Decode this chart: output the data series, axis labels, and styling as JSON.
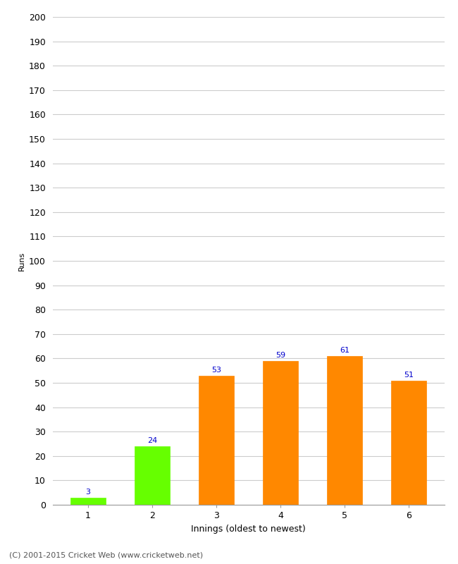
{
  "categories": [
    "1",
    "2",
    "3",
    "4",
    "5",
    "6"
  ],
  "values": [
    3,
    24,
    53,
    59,
    61,
    51
  ],
  "bar_colors": [
    "#66ff00",
    "#66ff00",
    "#ff8800",
    "#ff8800",
    "#ff8800",
    "#ff8800"
  ],
  "xlabel": "Innings (oldest to newest)",
  "ylabel": "Runs",
  "ylim": [
    0,
    200
  ],
  "yticks": [
    0,
    10,
    20,
    30,
    40,
    50,
    60,
    70,
    80,
    90,
    100,
    110,
    120,
    130,
    140,
    150,
    160,
    170,
    180,
    190,
    200
  ],
  "label_color": "#0000cc",
  "background_color": "#ffffff",
  "footer": "(C) 2001-2015 Cricket Web (www.cricketweb.net)",
  "grid_color": "#cccccc",
  "bar_width": 0.55
}
